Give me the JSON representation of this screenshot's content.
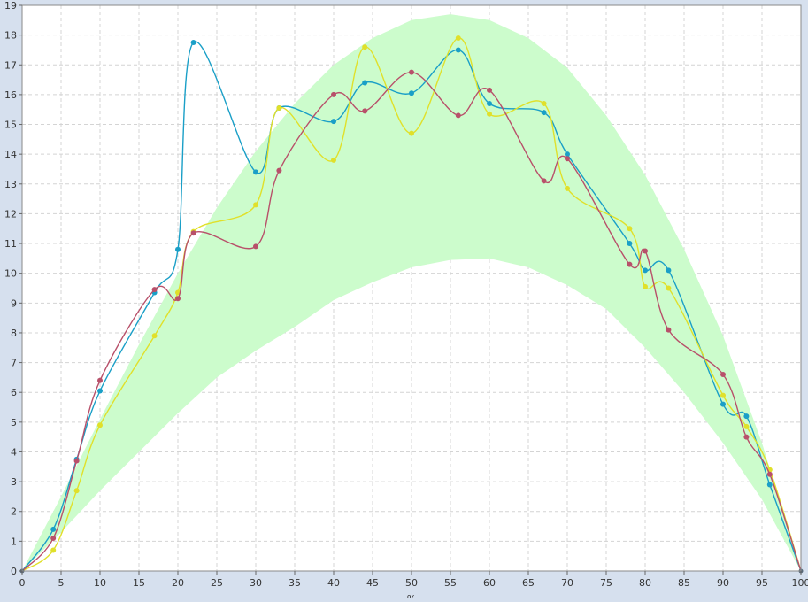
{
  "chart_data": {
    "type": "line",
    "title": "",
    "xlabel": "%",
    "ylabel": "",
    "xlim": [
      0,
      100
    ],
    "ylim": [
      0,
      19
    ],
    "x_ticks": [
      0,
      5,
      10,
      15,
      20,
      25,
      30,
      35,
      40,
      45,
      50,
      55,
      60,
      65,
      70,
      75,
      80,
      85,
      90,
      95,
      100
    ],
    "y_ticks": [
      0,
      1,
      2,
      3,
      4,
      5,
      6,
      7,
      8,
      9,
      10,
      11,
      12,
      13,
      14,
      15,
      16,
      17,
      18,
      19
    ],
    "grid": true,
    "legend": "none",
    "band": {
      "color": "#ccfccc",
      "upper": [
        [
          0,
          0
        ],
        [
          5,
          2.5
        ],
        [
          10,
          5.1
        ],
        [
          15,
          7.6
        ],
        [
          20,
          10
        ],
        [
          25,
          12.2
        ],
        [
          30,
          14.1
        ],
        [
          35,
          15.7
        ],
        [
          40,
          17
        ],
        [
          45,
          17.9
        ],
        [
          50,
          18.5
        ],
        [
          55,
          18.7
        ],
        [
          60,
          18.5
        ],
        [
          65,
          17.9
        ],
        [
          70,
          16.9
        ],
        [
          75,
          15.3
        ],
        [
          80,
          13.3
        ],
        [
          85,
          10.8
        ],
        [
          90,
          7.9
        ],
        [
          95,
          4.3
        ],
        [
          100,
          0
        ]
      ],
      "lower": [
        [
          0,
          0
        ],
        [
          5,
          1.3
        ],
        [
          10,
          2.7
        ],
        [
          15,
          4
        ],
        [
          20,
          5.3
        ],
        [
          25,
          6.5
        ],
        [
          30,
          7.4
        ],
        [
          35,
          8.2
        ],
        [
          40,
          9.1
        ],
        [
          45,
          9.7
        ],
        [
          50,
          10.2
        ],
        [
          55,
          10.45
        ],
        [
          60,
          10.5
        ],
        [
          65,
          10.2
        ],
        [
          70,
          9.6
        ],
        [
          75,
          8.8
        ],
        [
          80,
          7.5
        ],
        [
          85,
          6
        ],
        [
          90,
          4.3
        ],
        [
          95,
          2.4
        ],
        [
          100,
          0
        ]
      ]
    },
    "series": [
      {
        "color": "#1a9fc7",
        "points": [
          [
            0,
            0
          ],
          [
            4,
            1.4
          ],
          [
            7,
            3.75
          ],
          [
            10,
            6.05
          ],
          [
            17,
            9.35
          ],
          [
            20,
            10.8
          ],
          [
            22,
            17.75
          ],
          [
            30,
            13.4
          ],
          [
            33,
            15.55
          ],
          [
            40,
            15.1
          ],
          [
            44,
            16.4
          ],
          [
            50,
            16.05
          ],
          [
            56,
            17.5
          ],
          [
            60,
            15.7
          ],
          [
            67,
            15.4
          ],
          [
            70,
            14
          ],
          [
            78,
            11
          ],
          [
            80,
            10.1
          ],
          [
            83,
            10.1
          ],
          [
            90,
            5.6
          ],
          [
            93,
            5.2
          ],
          [
            96,
            2.9
          ],
          [
            100,
            0
          ]
        ]
      },
      {
        "color": "#e0e02a",
        "points": [
          [
            0,
            0
          ],
          [
            4,
            0.7
          ],
          [
            7,
            2.7
          ],
          [
            10,
            4.9
          ],
          [
            17,
            7.9
          ],
          [
            20,
            9.35
          ],
          [
            22,
            11.4
          ],
          [
            30,
            12.3
          ],
          [
            33,
            15.55
          ],
          [
            40,
            13.8
          ],
          [
            44,
            17.6
          ],
          [
            50,
            14.7
          ],
          [
            56,
            17.9
          ],
          [
            60,
            15.35
          ],
          [
            67,
            15.7
          ],
          [
            70,
            12.85
          ],
          [
            78,
            11.5
          ],
          [
            80,
            9.55
          ],
          [
            83,
            9.5
          ],
          [
            90,
            5.9
          ],
          [
            93,
            4.85
          ],
          [
            96,
            3.4
          ],
          [
            100,
            0
          ]
        ]
      },
      {
        "color": "#b8506a",
        "points": [
          [
            0,
            0
          ],
          [
            4,
            1.1
          ],
          [
            7,
            3.7
          ],
          [
            10,
            6.4
          ],
          [
            17,
            9.45
          ],
          [
            20,
            9.15
          ],
          [
            22,
            11.35
          ],
          [
            30,
            10.9
          ],
          [
            33,
            13.45
          ],
          [
            40,
            16
          ],
          [
            44,
            15.45
          ],
          [
            50,
            16.75
          ],
          [
            56,
            15.3
          ],
          [
            60,
            16.15
          ],
          [
            67,
            13.1
          ],
          [
            70,
            13.85
          ],
          [
            78,
            10.3
          ],
          [
            80,
            10.75
          ],
          [
            83,
            8.1
          ],
          [
            90,
            6.6
          ],
          [
            93,
            4.5
          ],
          [
            96,
            3.25
          ],
          [
            100,
            0
          ]
        ]
      }
    ]
  }
}
